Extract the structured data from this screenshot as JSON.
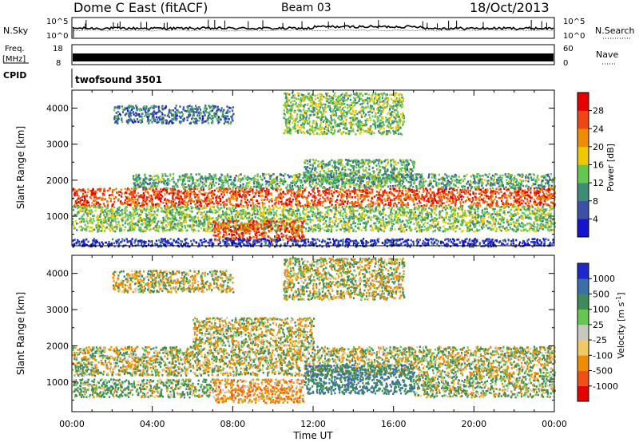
{
  "header": {
    "title": "Dome C East (fitACF)",
    "beam": "Beam 03",
    "date": "18/Oct/2013"
  },
  "status_panels": {
    "noise": {
      "left_label": "N.Sky",
      "right_label": "N.Search",
      "left_ticks": [
        "10^5",
        "10^0"
      ],
      "right_ticks": [
        "10^5",
        "10^0"
      ]
    },
    "freq": {
      "left_label_lines": [
        "Freq.",
        "[MHz]"
      ],
      "right_label": "Nave",
      "left_ticks": [
        "18",
        "8"
      ],
      "right_ticks": [
        "60",
        "0"
      ]
    },
    "cpid": {
      "label": "CPID",
      "value": "twofsound 3501"
    }
  },
  "colorbars": {
    "power": {
      "label": "Power [dB]",
      "ticks": [
        "4",
        "8",
        "12",
        "16",
        "20",
        "24",
        "28"
      ],
      "colors": [
        "#1414d2",
        "#3c50aa",
        "#3c8c78",
        "#64c850",
        "#f0c800",
        "#f08c00",
        "#f04614",
        "#e60000"
      ]
    },
    "velocity": {
      "label": "Velocity [m s",
      "label_sup": "-1",
      "label_close": "]",
      "ticks": [
        "-1000",
        "-500",
        "-100",
        "-25",
        "25",
        "100",
        "500",
        "1000"
      ],
      "colors": [
        "#e60000",
        "#f05014",
        "#f08c00",
        "#f0c864",
        "#c8c8c0",
        "#64c850",
        "#3c8c5a",
        "#3c6eaa",
        "#1e28c8"
      ]
    }
  },
  "chart_data": {
    "type": "heatmap",
    "xlabel": "Time UT",
    "ylabel": "Slant Range [km]",
    "x_ticks": [
      "00:00",
      "04:00",
      "08:00",
      "12:00",
      "16:00",
      "20:00",
      "00:00"
    ],
    "x_range_hours": [
      0,
      24
    ],
    "y_ticks": [
      1000,
      2000,
      3000,
      4000
    ],
    "y_range_km": [
      180,
      4500
    ],
    "panels": [
      {
        "name": "power",
        "value_units": "dB",
        "scale": [
          0,
          30
        ],
        "echo_regions": [
          {
            "t_start": 0.0,
            "t_end": 24.0,
            "range_start": 1300,
            "range_end": 1800,
            "typical_value": 26
          },
          {
            "t_start": 0.0,
            "t_end": 24.0,
            "range_start": 600,
            "range_end": 1300,
            "typical_value": 14
          },
          {
            "t_start": 7.0,
            "t_end": 11.5,
            "range_start": 350,
            "range_end": 900,
            "typical_value": 26
          },
          {
            "t_start": 3.0,
            "t_end": 24.0,
            "range_start": 1800,
            "range_end": 2200,
            "typical_value": 12
          },
          {
            "t_start": 11.5,
            "t_end": 17.0,
            "range_start": 2000,
            "range_end": 2600,
            "typical_value": 12
          },
          {
            "t_start": 2.0,
            "t_end": 8.0,
            "range_start": 3600,
            "range_end": 4100,
            "typical_value": 8
          },
          {
            "t_start": 10.5,
            "t_end": 16.5,
            "range_start": 3300,
            "range_end": 4450,
            "typical_value": 14
          },
          {
            "t_start": 0.0,
            "t_end": 24.0,
            "range_start": 180,
            "range_end": 400,
            "typical_value": 4
          }
        ]
      },
      {
        "name": "velocity",
        "value_units": "m/s",
        "scale": [
          -1000,
          1000
        ],
        "echo_regions": [
          {
            "t_start": 0.0,
            "t_end": 24.0,
            "range_start": 1200,
            "range_end": 2000,
            "typical_value": 0
          },
          {
            "t_start": 0.0,
            "t_end": 7.0,
            "range_start": 600,
            "range_end": 1100,
            "typical_value": 150
          },
          {
            "t_start": 7.0,
            "t_end": 11.5,
            "range_start": 450,
            "range_end": 1100,
            "typical_value": -300
          },
          {
            "t_start": 11.5,
            "t_end": 17.0,
            "range_start": 700,
            "range_end": 1500,
            "typical_value": 450
          },
          {
            "t_start": 17.0,
            "t_end": 24.0,
            "range_start": 600,
            "range_end": 1200,
            "typical_value": 120
          },
          {
            "t_start": 6.0,
            "t_end": 12.0,
            "range_start": 2000,
            "range_end": 2800,
            "typical_value": -60
          },
          {
            "t_start": 2.0,
            "t_end": 8.0,
            "range_start": 3500,
            "range_end": 4100,
            "typical_value": -30
          },
          {
            "t_start": 10.5,
            "t_end": 16.5,
            "range_start": 3300,
            "range_end": 4450,
            "typical_value": 0
          }
        ]
      }
    ]
  }
}
